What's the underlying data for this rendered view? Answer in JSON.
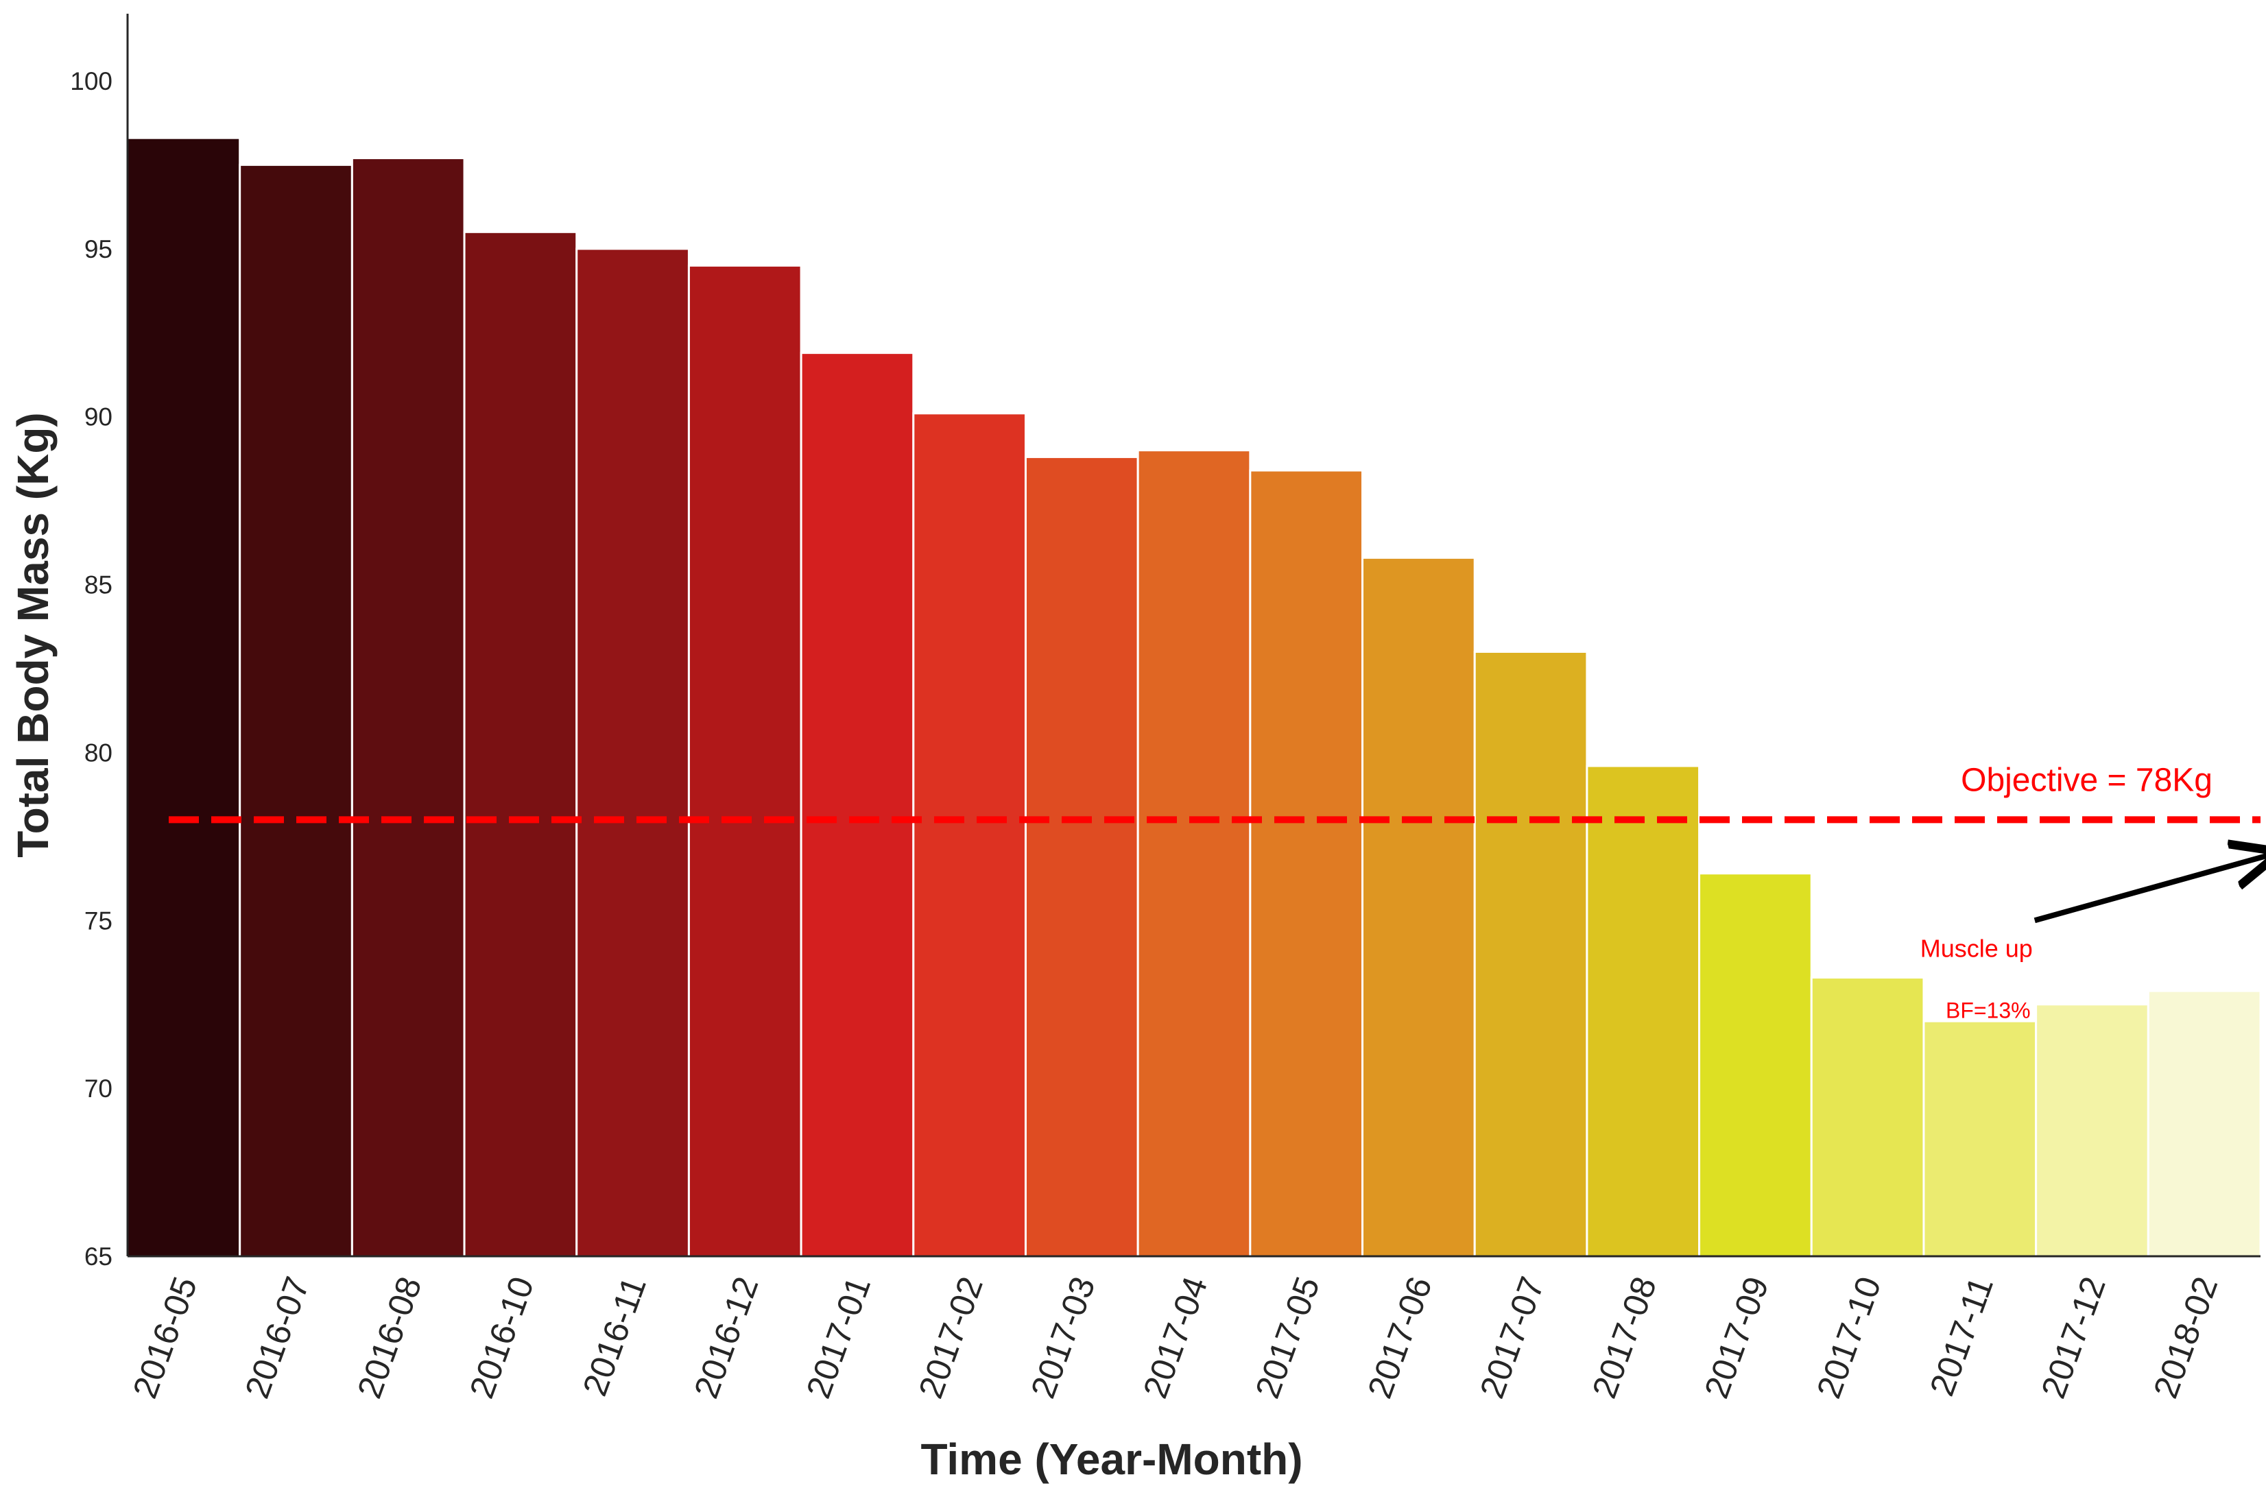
{
  "chart_data": {
    "type": "bar",
    "xlabel": "Time (Year-Month)",
    "ylabel": "Total Body Mass (Kg)",
    "ylim": [
      65,
      102
    ],
    "yticks": [
      65,
      70,
      75,
      80,
      85,
      90,
      95,
      100
    ],
    "grid": false,
    "categories": [
      "2016-05",
      "2016-07",
      "2016-08",
      "2016-10",
      "2016-11",
      "2016-12",
      "2017-01",
      "2017-02",
      "2017-03",
      "2017-04",
      "2017-05",
      "2017-06",
      "2017-07",
      "2017-08",
      "2017-09",
      "2017-10",
      "2017-11",
      "2017-12",
      "2018-02"
    ],
    "values": [
      98.3,
      97.5,
      97.7,
      95.5,
      95.0,
      94.5,
      91.9,
      90.1,
      88.8,
      89.0,
      88.4,
      85.8,
      83.0,
      79.6,
      76.4,
      73.3,
      72.0,
      72.5,
      72.9
    ],
    "bar_colors": [
      "#2a0508",
      "#450a0c",
      "#5e0d10",
      "#7a1113",
      "#931517",
      "#b01819",
      "#d41f1f",
      "#dd3222",
      "#df4c22",
      "#e06623",
      "#e07b23",
      "#de9622",
      "#dcb021",
      "#dcc420",
      "#dde023",
      "#e6e652",
      "#ebeb70",
      "#f3f3a6",
      "#f8f8d4"
    ],
    "objective": {
      "value": 78,
      "label": "Objective = 78Kg",
      "color": "#ff0000"
    },
    "annotations": [
      {
        "text": "Muscle up",
        "x_category": "2017-11",
        "y": 74.2,
        "arrow_to": {
          "x_category": "2018-02",
          "y": 77.0
        },
        "color": "#ff0000"
      },
      {
        "text": "BF=13%",
        "x_category": "2017-11",
        "y": 72.3,
        "color": "#ff0000"
      }
    ]
  }
}
